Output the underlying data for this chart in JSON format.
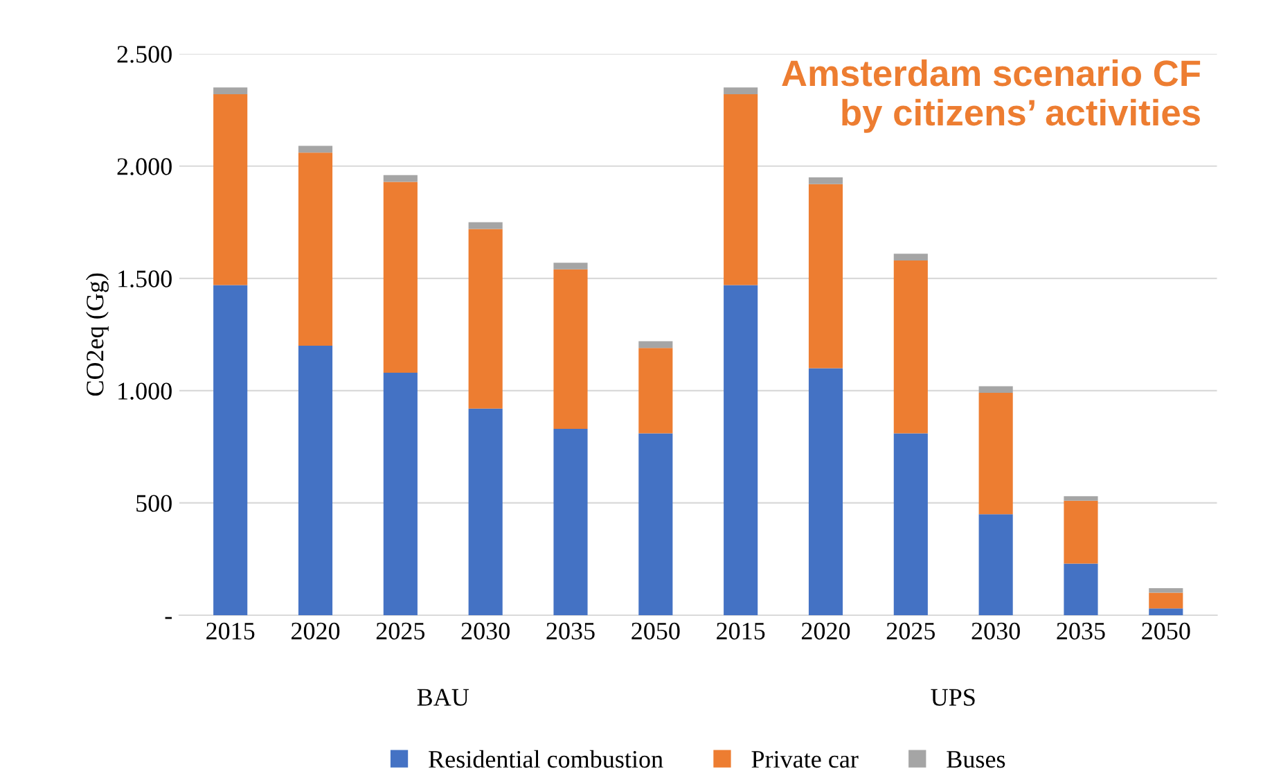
{
  "chart_data": {
    "type": "bar",
    "title": "Amsterdam scenario CF\nby citizens’ activities",
    "ylabel": "CO2eq (Gg)",
    "categories": [
      "2015",
      "2020",
      "2025",
      "2030",
      "2035",
      "2050",
      "2015",
      "2020",
      "2025",
      "2030",
      "2035",
      "2050"
    ],
    "annotations": [
      "BAU",
      "UPS"
    ],
    "stacked": true,
    "series": [
      {
        "name": "Residential combustion",
        "color": "#4472c4",
        "values": [
          1470,
          1200,
          1080,
          920,
          830,
          810,
          1470,
          1100,
          810,
          450,
          230,
          30
        ]
      },
      {
        "name": "Private car",
        "color": "#ed7d31",
        "values": [
          850,
          860,
          850,
          800,
          710,
          380,
          850,
          820,
          770,
          540,
          280,
          70
        ]
      },
      {
        "name": "Buses",
        "color": "#a5a5a5",
        "values": [
          30,
          30,
          30,
          30,
          30,
          30,
          30,
          30,
          30,
          30,
          20,
          20
        ]
      }
    ],
    "ylim": [
      0,
      2500
    ],
    "yticks": [
      {
        "value": 0,
        "label": "-"
      },
      {
        "value": 500,
        "label": "500"
      },
      {
        "value": 1000,
        "label": "1.000"
      },
      {
        "value": 1500,
        "label": "1.500"
      },
      {
        "value": 2000,
        "label": "2.000"
      },
      {
        "value": 2500,
        "label": "2.500"
      }
    ],
    "grid": "y",
    "legend": "bottom"
  }
}
